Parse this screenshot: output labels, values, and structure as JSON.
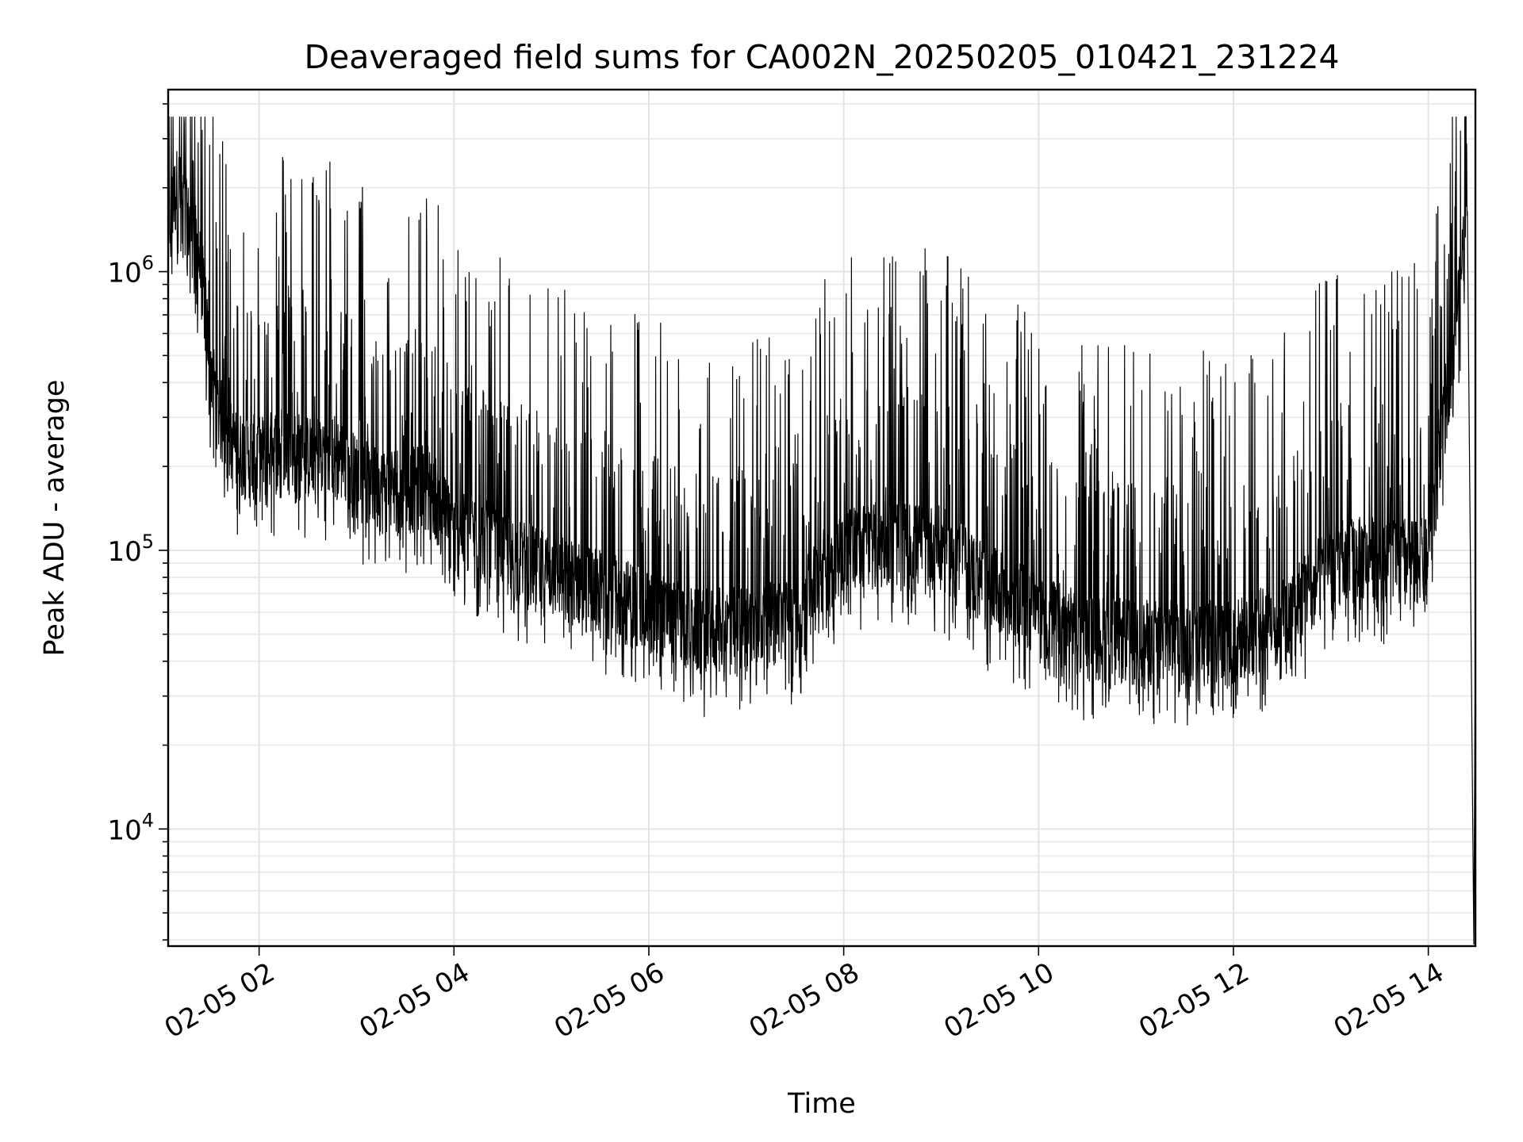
{
  "chart_data": {
    "type": "line",
    "title": "Deaveraged field sums for CA002N_20250205_010421_231224",
    "xlabel": "Time",
    "ylabel": "Peak ADU - average",
    "yscale": "log",
    "ylim": [
      3800,
      4500000
    ],
    "xlim": [
      "2025-02-05 01:04",
      "2025-02-05 14:29"
    ],
    "xticks": [
      "2025-02-05 02:00",
      "2025-02-05 04:00",
      "2025-02-05 06:00",
      "2025-02-05 08:00",
      "2025-02-05 10:00",
      "2025-02-05 12:00",
      "2025-02-05 14:00"
    ],
    "xtick_labels": [
      "02-05 02",
      "02-05 04",
      "02-05 06",
      "02-05 08",
      "02-05 10",
      "02-05 12",
      "02-05 14"
    ],
    "ytick_values": [
      10000,
      100000,
      1000000
    ],
    "ytick_labels": [
      {
        "base": "10",
        "exp": "4"
      },
      {
        "base": "10",
        "exp": "5"
      },
      {
        "base": "10",
        "exp": "6"
      }
    ],
    "grid": true,
    "line_color": "#000000",
    "series": [
      {
        "x": [
          "2025-02-05 01:04",
          "2025-02-05 01:10",
          "2025-02-05 01:15",
          "2025-02-05 01:20",
          "2025-02-05 01:25",
          "2025-02-05 01:30",
          "2025-02-05 01:35",
          "2025-02-05 01:45",
          "2025-02-05 02:00",
          "2025-02-05 02:15",
          "2025-02-05 02:30",
          "2025-02-05 02:45",
          "2025-02-05 03:00",
          "2025-02-05 03:15",
          "2025-02-05 03:24",
          "2025-02-05 03:30",
          "2025-02-05 03:45",
          "2025-02-05 04:00",
          "2025-02-05 04:15",
          "2025-02-05 04:30",
          "2025-02-05 05:00",
          "2025-02-05 05:30",
          "2025-02-05 06:00",
          "2025-02-05 06:30",
          "2025-02-05 07:00",
          "2025-02-05 07:30",
          "2025-02-05 07:45",
          "2025-02-05 08:00",
          "2025-02-05 08:30",
          "2025-02-05 08:55",
          "2025-02-05 09:00",
          "2025-02-05 09:30",
          "2025-02-05 10:00",
          "2025-02-05 10:30",
          "2025-02-05 11:00",
          "2025-02-05 11:30",
          "2025-02-05 12:00",
          "2025-02-05 12:30",
          "2025-02-05 12:55",
          "2025-02-05 13:00",
          "2025-02-05 13:30",
          "2025-02-05 14:00",
          "2025-02-05 14:10",
          "2025-02-05 14:20",
          "2025-02-05 14:24"
        ],
        "y": [
          1400000,
          2000000,
          1500000,
          1300000,
          900000,
          450000,
          300000,
          220000,
          210000,
          230000,
          210000,
          220000,
          180000,
          160000,
          165000,
          160000,
          170000,
          110000,
          110000,
          95000,
          80000,
          70000,
          60000,
          50000,
          52000,
          55000,
          80000,
          100000,
          105000,
          100000,
          100000,
          72000,
          58000,
          48000,
          46000,
          46000,
          46000,
          55000,
          80000,
          90000,
          92000,
          90000,
          300000,
          900000,
          1900000
        ]
      }
    ]
  }
}
